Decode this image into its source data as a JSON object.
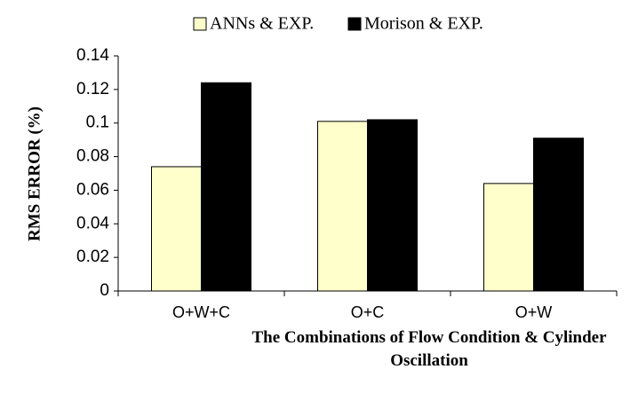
{
  "chart_data": {
    "type": "bar",
    "x_label": "The Combinations of Flow Condition & Cylinder Oscillation",
    "y_label": "RMS ERROR (%)",
    "categories": [
      "O+W+C",
      "O+C",
      "O+W"
    ],
    "series": [
      {
        "name": "ANNs & EXP.",
        "color": "#ffffcc",
        "values": [
          0.074,
          0.101,
          0.064
        ]
      },
      {
        "name": "Morison & EXP.",
        "color": "#000000",
        "values": [
          0.124,
          0.102,
          0.091
        ]
      }
    ],
    "ylim": [
      0,
      0.14
    ],
    "yticks": [
      0,
      0.02,
      0.04,
      0.06,
      0.08,
      0.1,
      0.12,
      0.14
    ],
    "legend": "top"
  }
}
